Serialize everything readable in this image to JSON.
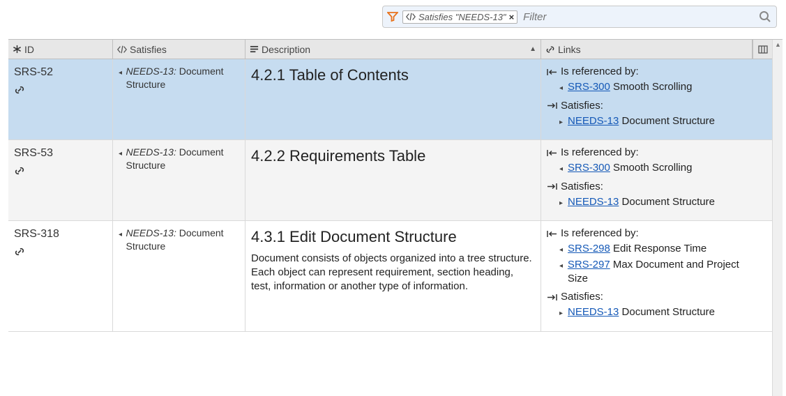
{
  "filter": {
    "chip_label": "Satisfies \"NEEDS-13\"",
    "placeholder": "Filter"
  },
  "columns": {
    "id": "ID",
    "satisfies": "Satisfies",
    "description": "Description",
    "links": "Links"
  },
  "rows": [
    {
      "id": "SRS-52",
      "selected": true,
      "alt": false,
      "satisfies": {
        "id": "NEEDS-13:",
        "text": "Document Structure"
      },
      "desc_head": "4.2.1 Table of Contents",
      "desc_body": "",
      "referenced_by": [
        {
          "link": "SRS-300",
          "rest": " Smooth Scrolling"
        }
      ],
      "satisfies_links": [
        {
          "link": "NEEDS-13",
          "rest": " Document Structure"
        }
      ]
    },
    {
      "id": "SRS-53",
      "selected": false,
      "alt": true,
      "satisfies": {
        "id": "NEEDS-13:",
        "text": "Document Structure"
      },
      "desc_head": "4.2.2 Requirements Table",
      "desc_body": "",
      "referenced_by": [
        {
          "link": "SRS-300",
          "rest": " Smooth Scrolling"
        }
      ],
      "satisfies_links": [
        {
          "link": "NEEDS-13",
          "rest": " Document Structure"
        }
      ]
    },
    {
      "id": "SRS-318",
      "selected": false,
      "alt": false,
      "satisfies": {
        "id": "NEEDS-13:",
        "text": "Document Structure"
      },
      "desc_head": "4.3.1 Edit Document Structure",
      "desc_body": "Document consists of objects organized into a tree structure. Each object can represent requirement, section heading, test, information or another type of information.",
      "referenced_by": [
        {
          "link": "SRS-298",
          "rest": " Edit Response Time"
        },
        {
          "link": "SRS-297",
          "rest": " Max Document and Project Size"
        }
      ],
      "satisfies_links": [
        {
          "link": "NEEDS-13",
          "rest": " Document Structure"
        }
      ]
    }
  ],
  "labels": {
    "referenced_by": "Is referenced by:",
    "satisfies": "Satisfies:"
  }
}
